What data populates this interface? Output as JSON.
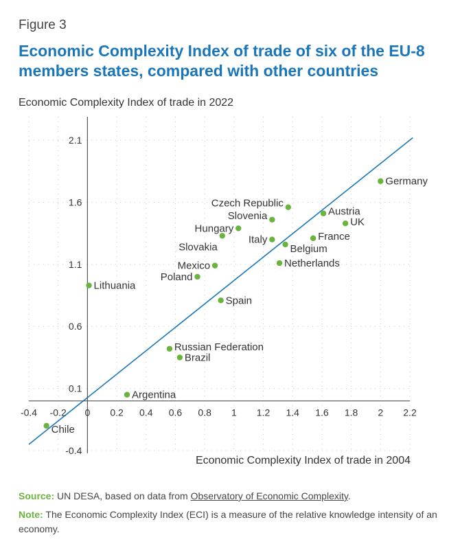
{
  "figure_label": "Figure 3",
  "title": "Economic Complexity Index of trade of six of the EU-8 members states, compared with other countries",
  "colors": {
    "title": "#1a76b8",
    "point": "#6bb33f",
    "line": "#1a76b8",
    "label_accent": "#6bb33f"
  },
  "chart_data": {
    "type": "scatter",
    "ylabel": "Economic Complexity Index of trade in 2022",
    "xlabel": "Economic Complexity Index of trade in 2004",
    "xlim": [
      -0.4,
      2.2
    ],
    "ylim": [
      -0.4,
      2.2
    ],
    "x_ticks": [
      "-0.4",
      "-0.2",
      "0",
      "0.2",
      "0.4",
      "0.6",
      "0.8",
      "1",
      "1.2",
      "1.4",
      "1.6",
      "1.8",
      "2",
      "2.2"
    ],
    "y_ticks": [
      "-0.4",
      "0.1",
      "0.6",
      "1.1",
      "1.6",
      "2.1"
    ],
    "grid": "dotted",
    "reference_line": {
      "from": [
        -0.4,
        -0.35
      ],
      "to": [
        2.22,
        2.12
      ]
    },
    "points": [
      {
        "name": "Germany",
        "x": 2.0,
        "y": 1.77
      },
      {
        "name": "Czech Republic",
        "x": 1.37,
        "y": 1.56
      },
      {
        "name": "Austria",
        "x": 1.61,
        "y": 1.51
      },
      {
        "name": "Slovenia",
        "x": 1.26,
        "y": 1.46
      },
      {
        "name": "UK",
        "x": 1.76,
        "y": 1.43
      },
      {
        "name": "Hungary",
        "x": 1.03,
        "y": 1.39
      },
      {
        "name": "Slovakia",
        "x": 0.92,
        "y": 1.33
      },
      {
        "name": "France",
        "x": 1.54,
        "y": 1.31
      },
      {
        "name": "Italy",
        "x": 1.26,
        "y": 1.3
      },
      {
        "name": "Belgium",
        "x": 1.35,
        "y": 1.26
      },
      {
        "name": "Netherlands",
        "x": 1.31,
        "y": 1.11
      },
      {
        "name": "Mexico",
        "x": 0.87,
        "y": 1.09
      },
      {
        "name": "Poland",
        "x": 0.75,
        "y": 1.0
      },
      {
        "name": "Lithuania",
        "x": 0.01,
        "y": 0.93
      },
      {
        "name": "Spain",
        "x": 0.91,
        "y": 0.81
      },
      {
        "name": "Russian Federation",
        "x": 0.56,
        "y": 0.42
      },
      {
        "name": "Brazil",
        "x": 0.63,
        "y": 0.35
      },
      {
        "name": "Argentina",
        "x": 0.27,
        "y": 0.05
      },
      {
        "name": "Chile",
        "x": -0.28,
        "y": -0.2
      }
    ]
  },
  "notes": {
    "source_label": "Source:",
    "source_text": "UN DESA, based on data from",
    "source_link": "Observatory of Economic Complexity",
    "source_end": ".",
    "note_label": "Note:",
    "note_text": "The Economic Complexity Index (ECI) is a measure of the relative knowledge intensity of an economy."
  }
}
